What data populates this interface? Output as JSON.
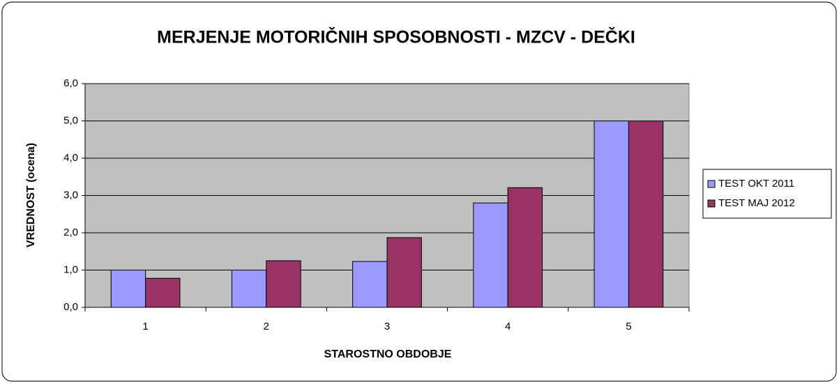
{
  "chart_data": {
    "type": "bar",
    "title": "MERJENJE MOTORIČNIH SPOSOBNOSTI - MZCV  - DEČKI",
    "x_label": "STAROSTNO OBDOBJE",
    "y_label": "VREDNOST (ocena)",
    "categories": [
      "1",
      "2",
      "3",
      "4",
      "5"
    ],
    "series": [
      {
        "name": "TEST OKT 2011",
        "color": "#9999ff",
        "values": [
          1.0,
          1.0,
          1.23,
          2.8,
          5.0
        ]
      },
      {
        "name": "TEST MAJ 2012",
        "color": "#993366",
        "values": [
          0.78,
          1.25,
          1.87,
          3.21,
          5.0
        ]
      }
    ],
    "ylim": [
      0,
      6
    ],
    "yticks": [
      {
        "value": 0,
        "label": "0,0"
      },
      {
        "value": 1,
        "label": "1,0"
      },
      {
        "value": 2,
        "label": "2,0"
      },
      {
        "value": 3,
        "label": "3,0"
      },
      {
        "value": 4,
        "label": "4,0"
      },
      {
        "value": 5,
        "label": "5,0"
      },
      {
        "value": 6,
        "label": "6,0"
      }
    ],
    "grid": true,
    "legend": "right"
  }
}
